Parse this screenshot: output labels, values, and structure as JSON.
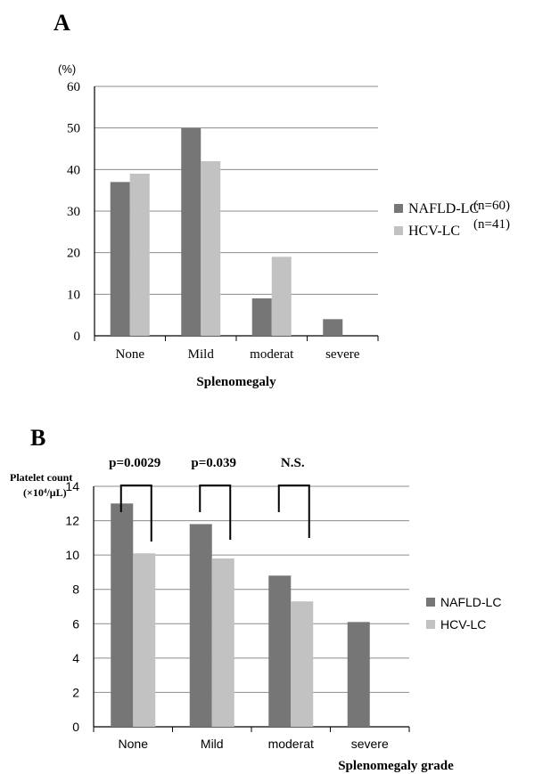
{
  "panels": [
    {
      "letter": "A",
      "unit_label": "(%)",
      "unit_label_line2": "",
      "colors": {
        "NAFLD-LC": "#767676",
        "HCV-LC": "#c2c2c2"
      },
      "legend_notes": [
        "(n=60)",
        "(n=41)"
      ],
      "brackets": []
    },
    {
      "letter": "B",
      "unit_label": "Platelet count",
      "unit_label_line2": "(×10⁴/μL)",
      "colors": {
        "NAFLD-LC": "#767676",
        "HCV-LC": "#c2c2c2"
      },
      "legend_notes": [],
      "brackets": [
        {
          "category": "None",
          "label": "p=0.0029"
        },
        {
          "category": "Mild",
          "label": "p=0.039"
        },
        {
          "category": "moderat",
          "label": "N.S."
        }
      ]
    }
  ],
  "chart_data": [
    {
      "type": "bar",
      "title": "",
      "xlabel": "Splenomegaly",
      "ylabel": "(%)",
      "categories": [
        "None",
        "Mild",
        "moderat",
        "severe"
      ],
      "series": [
        {
          "name": "NAFLD-LC",
          "values": [
            37,
            50,
            9,
            4
          ]
        },
        {
          "name": "HCV-LC",
          "values": [
            39,
            42,
            19,
            0
          ]
        }
      ],
      "ylim": [
        0,
        60
      ],
      "yticks": [
        0,
        10,
        20,
        30,
        40,
        50,
        60
      ],
      "grid": true,
      "legend": "right"
    },
    {
      "type": "bar",
      "title": "",
      "xlabel": "Splenomegaly grade",
      "ylabel": "Platelet count (×10⁴/μL)",
      "categories": [
        "None",
        "Mild",
        "moderat",
        "severe"
      ],
      "series": [
        {
          "name": "NAFLD-LC",
          "values": [
            13.0,
            11.8,
            8.8,
            6.1
          ]
        },
        {
          "name": "HCV-LC",
          "values": [
            10.1,
            9.8,
            7.3,
            null
          ]
        }
      ],
      "ylim": [
        0,
        14
      ],
      "yticks": [
        0,
        2,
        4,
        6,
        8,
        10,
        12,
        14
      ],
      "grid": true,
      "legend": "right"
    }
  ]
}
